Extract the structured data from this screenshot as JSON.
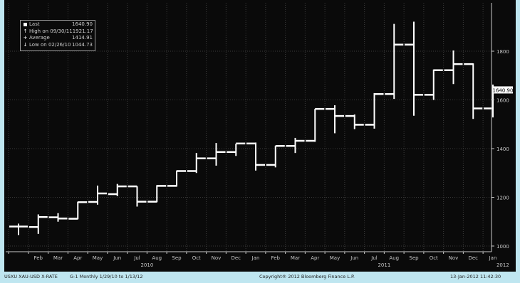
{
  "chart_data": {
    "type": "bar",
    "subtype": "ohlc-monthly",
    "series_name": "USXU XAU-USD X-RATE",
    "ylim": [
      960,
      1920
    ],
    "yticks": [
      1000,
      1200,
      1400,
      1600,
      1800
    ],
    "last_label": "1640.90",
    "months": [
      "Feb",
      "Mar",
      "Apr",
      "May",
      "Jun",
      "Jul",
      "Aug",
      "Sep",
      "Oct",
      "Nov",
      "Dec",
      "Jan",
      "Feb",
      "Mar",
      "Apr",
      "May",
      "Jun",
      "Jul",
      "Aug",
      "Sep",
      "Oct",
      "Nov",
      "Dec",
      "Jan"
    ],
    "year_labels": [
      {
        "after_index": 5,
        "text": "2010"
      },
      {
        "after_index": 17,
        "text": "2011"
      },
      {
        "after_index": 23,
        "text": "2012"
      }
    ],
    "bars": [
      {
        "open": 1080,
        "high": 1092,
        "low": 1045,
        "close": 1080
      },
      {
        "open": 1078,
        "high": 1130,
        "low": 1050,
        "close": 1119
      },
      {
        "open": 1118,
        "high": 1135,
        "low": 1100,
        "close": 1113
      },
      {
        "open": 1112,
        "high": 1182,
        "low": 1110,
        "close": 1180
      },
      {
        "open": 1181,
        "high": 1248,
        "low": 1170,
        "close": 1216
      },
      {
        "open": 1213,
        "high": 1255,
        "low": 1205,
        "close": 1245
      },
      {
        "open": 1245,
        "high": 1245,
        "low": 1162,
        "close": 1182
      },
      {
        "open": 1182,
        "high": 1250,
        "low": 1180,
        "close": 1247
      },
      {
        "open": 1247,
        "high": 1310,
        "low": 1244,
        "close": 1308
      },
      {
        "open": 1308,
        "high": 1382,
        "low": 1300,
        "close": 1360
      },
      {
        "open": 1360,
        "high": 1423,
        "low": 1330,
        "close": 1386
      },
      {
        "open": 1386,
        "high": 1420,
        "low": 1370,
        "close": 1421
      },
      {
        "open": 1421,
        "high": 1425,
        "low": 1310,
        "close": 1333
      },
      {
        "open": 1333,
        "high": 1412,
        "low": 1323,
        "close": 1411
      },
      {
        "open": 1411,
        "high": 1444,
        "low": 1382,
        "close": 1432
      },
      {
        "open": 1432,
        "high": 1563,
        "low": 1428,
        "close": 1563
      },
      {
        "open": 1563,
        "high": 1578,
        "low": 1463,
        "close": 1534
      },
      {
        "open": 1534,
        "high": 1540,
        "low": 1480,
        "close": 1498
      },
      {
        "open": 1498,
        "high": 1628,
        "low": 1482,
        "close": 1624
      },
      {
        "open": 1624,
        "high": 1912,
        "low": 1604,
        "close": 1827
      },
      {
        "open": 1827,
        "high": 1921,
        "low": 1535,
        "close": 1621
      },
      {
        "open": 1621,
        "high": 1725,
        "low": 1600,
        "close": 1722
      },
      {
        "open": 1722,
        "high": 1803,
        "low": 1665,
        "close": 1747
      },
      {
        "open": 1747,
        "high": 1750,
        "low": 1522,
        "close": 1565
      },
      {
        "open": 1565,
        "high": 1663,
        "low": 1528,
        "close": 1641
      }
    ]
  },
  "legend": {
    "last": {
      "label": "Last",
      "value": "1640.90"
    },
    "high": {
      "label": "High on 09/30/11",
      "value": "1921.17"
    },
    "average": {
      "label": "Average",
      "value": "1414.91"
    },
    "low": {
      "label": "Low on 02/26/10",
      "value": "1044.73"
    }
  },
  "footer": {
    "ticker": "USXU  XAU-USD X-RATE",
    "info": "G-1   Monthly  1/29/10 to 1/13/12",
    "copyright": "Copyright® 2012 Bloomberg Finance L.P.",
    "timestamp": "13-Jan-2012 11:42:30"
  },
  "colors": {
    "background": "#0a0a0a",
    "bars": "#ffffff",
    "grid": "#3a3a3a",
    "axis_text": "#c8c8c8",
    "border": "#bfe6f0"
  }
}
